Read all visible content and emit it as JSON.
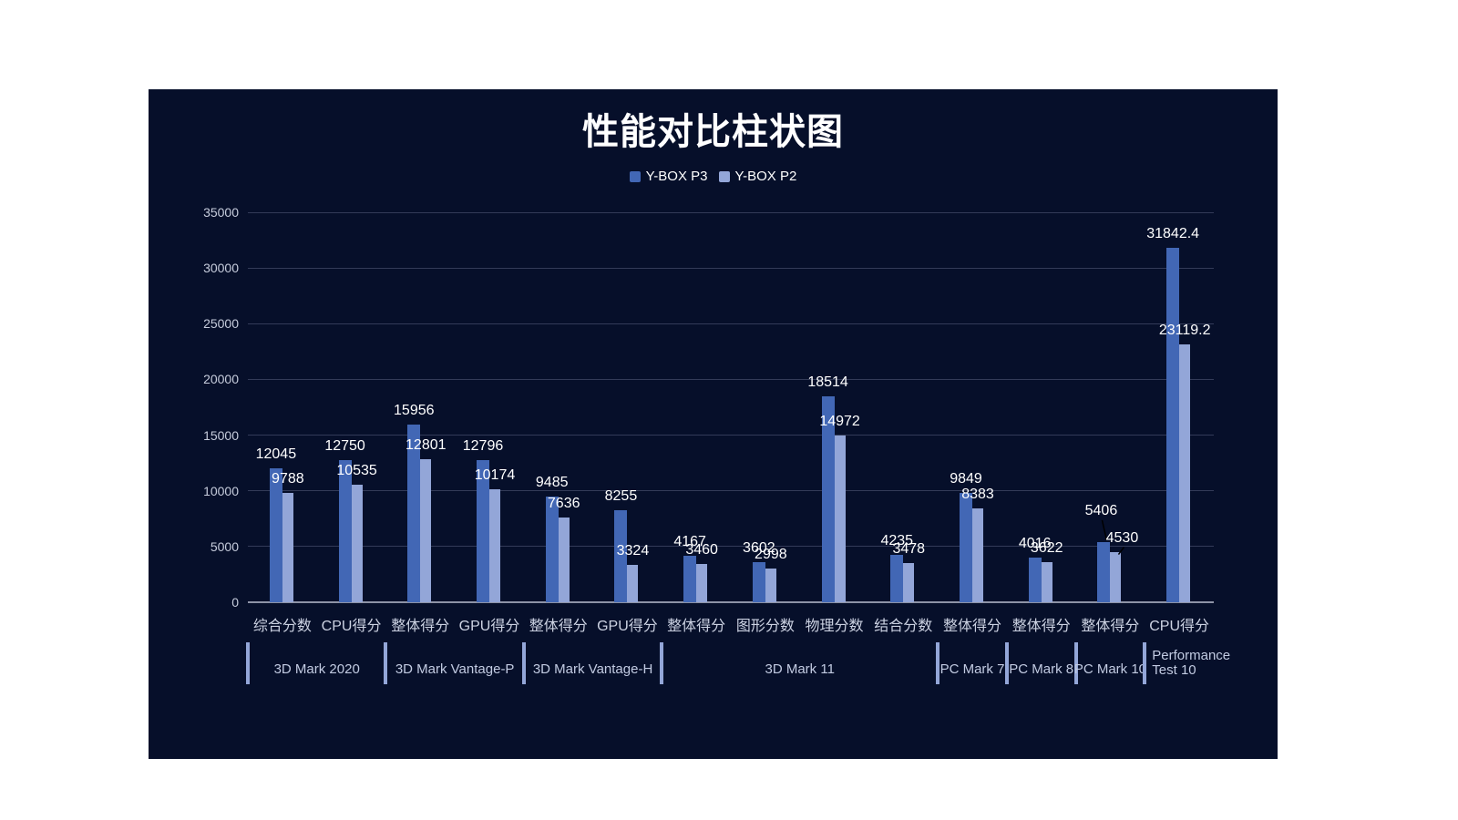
{
  "page": {
    "background": "#ffffff",
    "panel_background": "#060f2a"
  },
  "legend": {
    "items": [
      {
        "label": "Y-BOX P3",
        "color": "#4267b5"
      },
      {
        "label": "Y-BOX P2",
        "color": "#93a6d8"
      }
    ]
  },
  "chart_data": {
    "type": "bar",
    "title": "性能对比柱状图",
    "categories": [
      "综合分数",
      "CPU得分",
      "整体得分",
      "GPU得分",
      "整体得分",
      "GPU得分",
      "整体得分",
      "图形分数",
      "物理分数",
      "结合分数",
      "整体得分",
      "整体得分",
      "整体得分",
      "CPU得分"
    ],
    "series": [
      {
        "name": "Y-BOX P3",
        "color": "#4267b5",
        "values": [
          12045,
          12750,
          15956,
          12796,
          9485,
          8255,
          4167,
          3602,
          18514,
          4235,
          9849,
          4016,
          5406,
          31842.4
        ]
      },
      {
        "name": "Y-BOX P2",
        "color": "#93a6d8",
        "values": [
          9788,
          10535,
          12801,
          10174,
          7636,
          3324,
          3460,
          2998,
          14972,
          3478,
          8383,
          3622,
          4530,
          23119.2
        ]
      }
    ],
    "groups": [
      {
        "label": "3D Mark 2020",
        "start": 0,
        "count": 2
      },
      {
        "label": "3D Mark Vantage-P",
        "start": 2,
        "count": 2
      },
      {
        "label": "3D Mark Vantage-H",
        "start": 4,
        "count": 2
      },
      {
        "label": "3D Mark 11",
        "start": 6,
        "count": 4
      },
      {
        "label": "PC Mark 7",
        "start": 10,
        "count": 1
      },
      {
        "label": "PC Mark 8",
        "start": 11,
        "count": 1
      },
      {
        "label": "PC Mark 10",
        "start": 12,
        "count": 1
      },
      {
        "label": "Performance Test 10",
        "start": 13,
        "count": 1,
        "lines": [
          "Performance",
          "Test 10"
        ]
      }
    ],
    "ylim": [
      0,
      35000
    ],
    "yticks": [
      0,
      5000,
      10000,
      15000,
      20000,
      25000,
      30000,
      35000
    ],
    "legend_position": "top",
    "grid": true,
    "colors": {
      "background": "#060f2a",
      "grid_line": "#333b58",
      "axis_line": "#8d93a6",
      "tick_label": "#c6ccdc",
      "category_label": "#ccd2e2",
      "group_label": "#c2cbe2",
      "group_separator": "#93a6d8",
      "value_label": "#ffffff"
    }
  }
}
